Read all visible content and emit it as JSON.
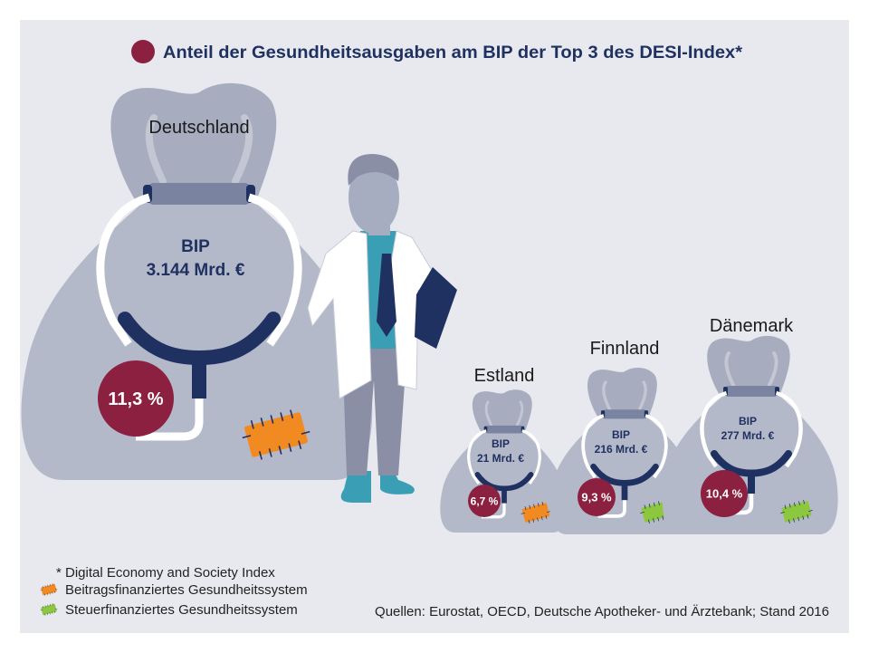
{
  "title": "Anteil der Gesundheitsausgaben am BIP der Top 3 des DESI-Index*",
  "colors": {
    "background": "#e8e9ee",
    "bag": "#b4b9c9",
    "navy": "#1f3160",
    "maroon": "#8b2040",
    "beitrag": "#f18a21",
    "steuer": "#8dc63f"
  },
  "countries": [
    {
      "name": "Deutschland",
      "bip_label": "BIP",
      "bip_value": "3.144 Mrd. €",
      "share": "11,3 %",
      "system": "beitrag"
    },
    {
      "name": "Estland",
      "bip_label": "BIP",
      "bip_value": "21 Mrd. €",
      "share": "6,7 %",
      "system": "beitrag"
    },
    {
      "name": "Finnland",
      "bip_label": "BIP",
      "bip_value": "216 Mrd. €",
      "share": "9,3 %",
      "system": "steuer"
    },
    {
      "name": "Dänemark",
      "bip_label": "BIP",
      "bip_value": "277 Mrd. €",
      "share": "10,4 %",
      "system": "steuer"
    }
  ],
  "footnote": "* Digital Economy and Society Index",
  "legend": [
    {
      "label": "Beitragsfinanziertes Gesundheitssystem",
      "system": "beitrag"
    },
    {
      "label": "Steuerfinanziertes Gesundheitssystem",
      "system": "steuer"
    }
  ],
  "source": "Quellen: Eurostat, OECD, Deutsche Apotheker- und Ärztebank; Stand 2016"
}
